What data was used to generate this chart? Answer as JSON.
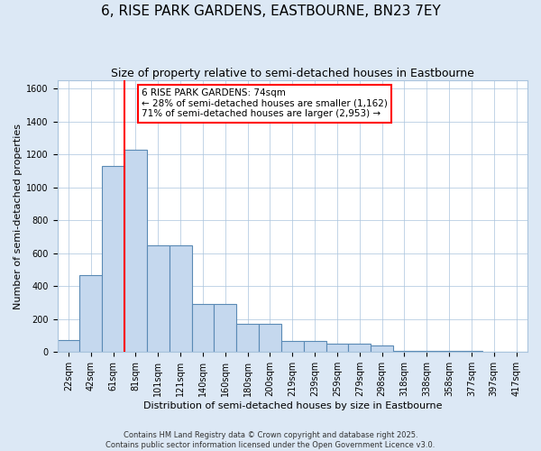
{
  "title": "6, RISE PARK GARDENS, EASTBOURNE, BN23 7EY",
  "subtitle": "Size of property relative to semi-detached houses in Eastbourne",
  "xlabel": "Distribution of semi-detached houses by size in Eastbourne",
  "ylabel": "Number of semi-detached properties",
  "footer": "Contains HM Land Registry data © Crown copyright and database right 2025.\nContains public sector information licensed under the Open Government Licence v3.0.",
  "categories": [
    "22sqm",
    "42sqm",
    "61sqm",
    "81sqm",
    "101sqm",
    "121sqm",
    "140sqm",
    "160sqm",
    "180sqm",
    "200sqm",
    "219sqm",
    "239sqm",
    "259sqm",
    "279sqm",
    "298sqm",
    "318sqm",
    "338sqm",
    "358sqm",
    "377sqm",
    "397sqm",
    "417sqm"
  ],
  "values": [
    75,
    470,
    1130,
    1230,
    650,
    650,
    290,
    290,
    170,
    170,
    70,
    70,
    50,
    50,
    40,
    10,
    10,
    5,
    5,
    2,
    2
  ],
  "bar_color": "#c5d8ee",
  "bar_edge_color": "#5a8ab5",
  "property_line_color": "red",
  "property_line_index": 2.5,
  "annotation_text": "6 RISE PARK GARDENS: 74sqm\n← 28% of semi-detached houses are smaller (1,162)\n71% of semi-detached houses are larger (2,953) →",
  "annotation_box_facecolor": "white",
  "annotation_box_edgecolor": "red",
  "ylim": [
    0,
    1650
  ],
  "yticks": [
    0,
    200,
    400,
    600,
    800,
    1000,
    1200,
    1400,
    1600
  ],
  "background_color": "#dce8f5",
  "plot_background": "white",
  "grid_color": "#aac4dd",
  "title_fontsize": 11,
  "subtitle_fontsize": 9,
  "ylabel_fontsize": 8,
  "xlabel_fontsize": 8,
  "tick_fontsize": 7,
  "footer_fontsize": 6
}
